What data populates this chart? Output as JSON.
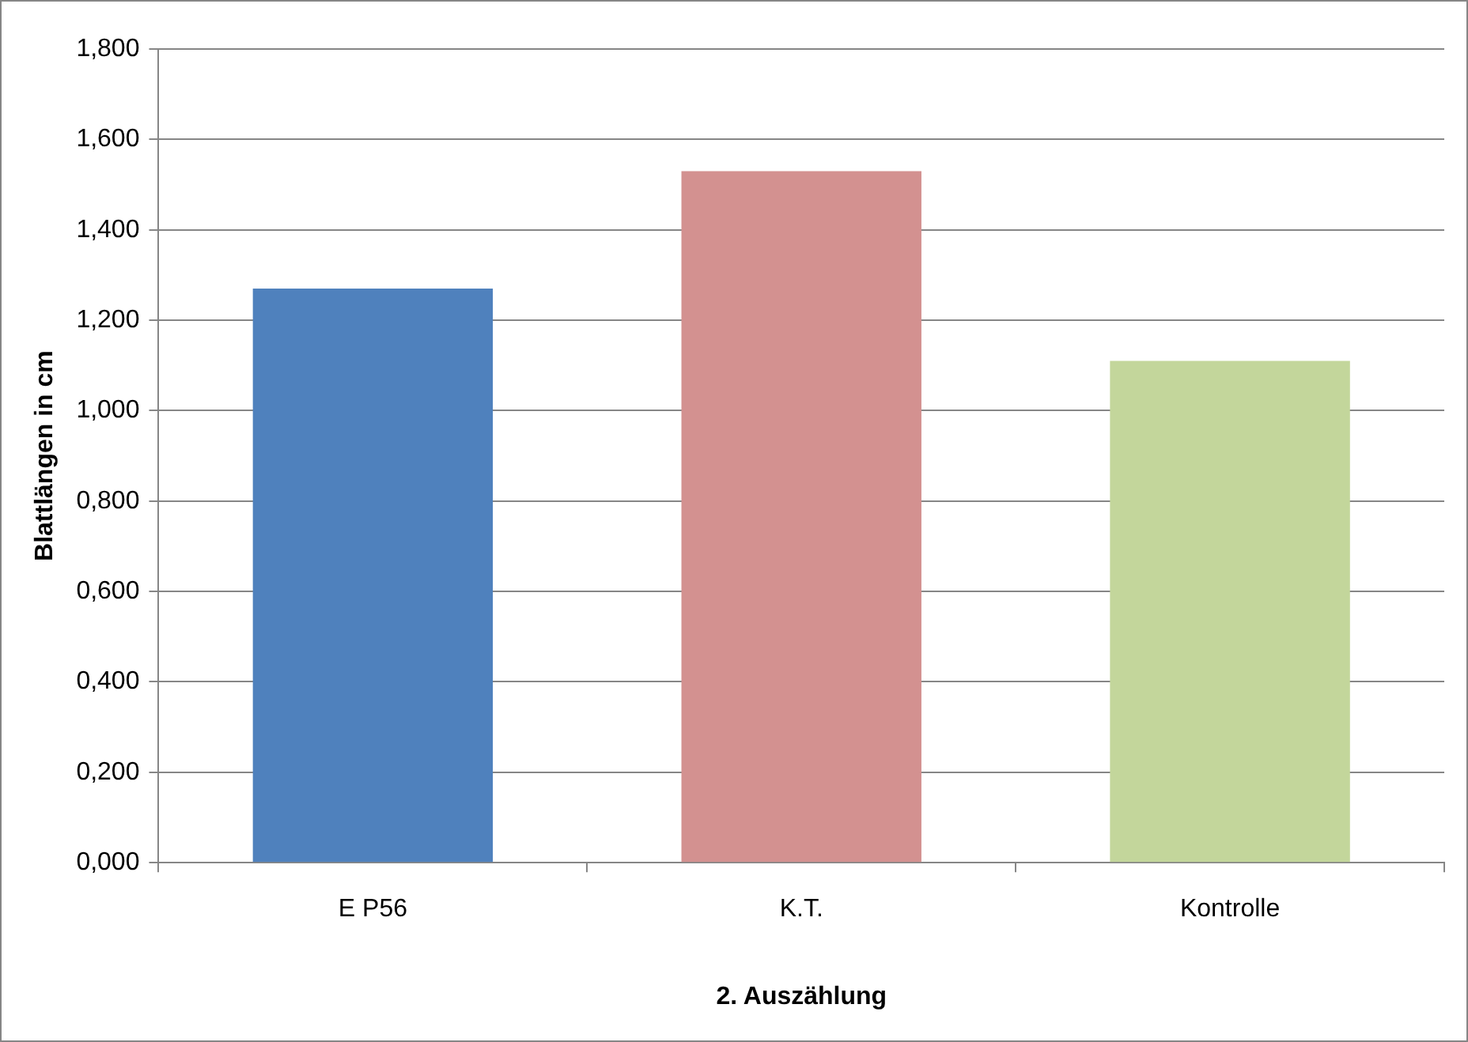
{
  "chart_data": {
    "type": "bar",
    "xlabel": "2. Auszählung",
    "ylabel": "Blattlängen in cm",
    "categories": [
      "E P56",
      "K.T.",
      "Kontrolle"
    ],
    "values": [
      1.27,
      1.53,
      1.11
    ],
    "colors": [
      "#4f81bd",
      "#d39190",
      "#c3d69b"
    ],
    "ylim": [
      0,
      1.8
    ],
    "yticks": [
      {
        "value": 0,
        "label": "0,000"
      },
      {
        "value": 0.2,
        "label": "0,200"
      },
      {
        "value": 0.4,
        "label": "0,400"
      },
      {
        "value": 0.6,
        "label": "0,600"
      },
      {
        "value": 0.8,
        "label": "0,800"
      },
      {
        "value": 1,
        "label": "1,000"
      },
      {
        "value": 1.2,
        "label": "1,200"
      },
      {
        "value": 1.4,
        "label": "1,400"
      },
      {
        "value": 1.6,
        "label": "1,600"
      },
      {
        "value": 1.8,
        "label": "1,800"
      }
    ],
    "grid": "y"
  }
}
